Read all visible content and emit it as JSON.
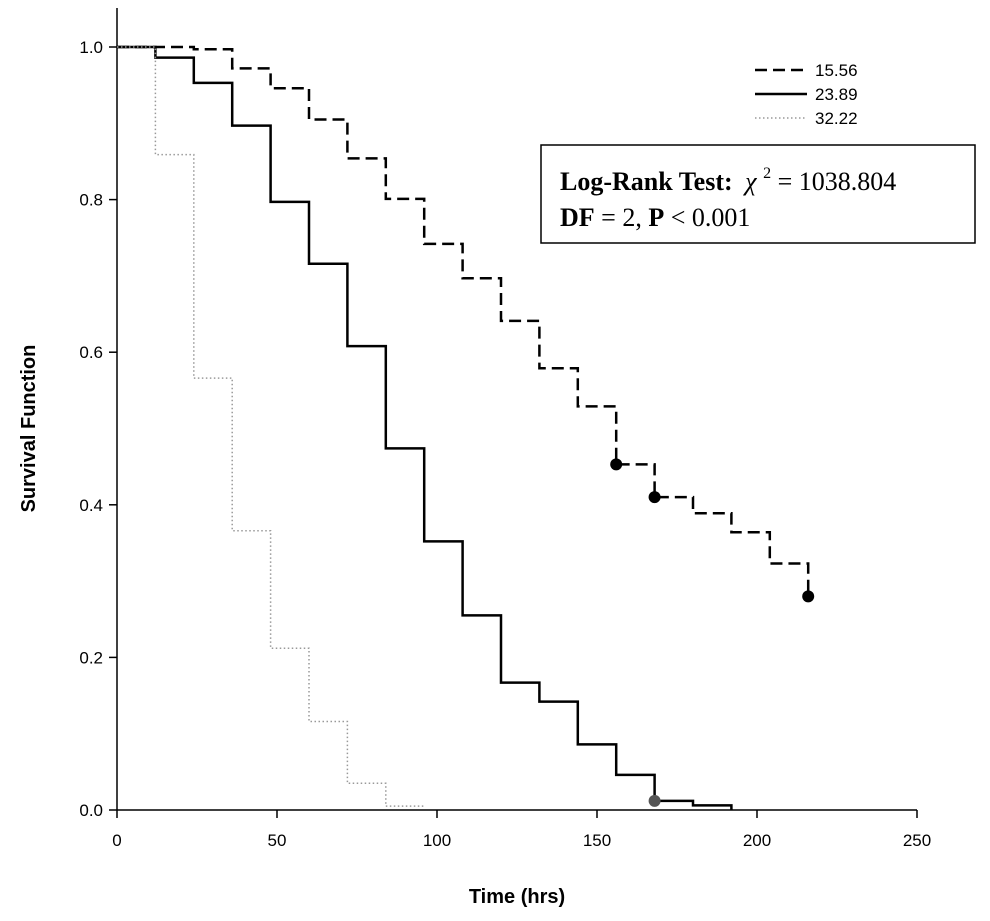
{
  "chart_data": {
    "type": "line",
    "subtype": "step (Kaplan-Meier survival)",
    "xlabel": "Time (hrs)",
    "ylabel": "Survival Function",
    "xlim": [
      0,
      250
    ],
    "ylim": [
      0,
      1.0
    ],
    "xticks": [
      "0",
      "50",
      "100",
      "150",
      "200",
      "250"
    ],
    "yticks": [
      "0.0",
      "0.2",
      "0.4",
      "0.6",
      "0.8",
      "1.0"
    ],
    "grid": false,
    "legend_position": "top-right",
    "series": [
      {
        "name": "15.56",
        "line_style": "dashed",
        "color": "#000000",
        "steps": [
          [
            0,
            1.0
          ],
          [
            12,
            1.0
          ],
          [
            24,
            0.997
          ],
          [
            36,
            0.972
          ],
          [
            48,
            0.946
          ],
          [
            60,
            0.905
          ],
          [
            72,
            0.854
          ],
          [
            84,
            0.801
          ],
          [
            96,
            0.742
          ],
          [
            108,
            0.697
          ],
          [
            120,
            0.641
          ],
          [
            132,
            0.579
          ],
          [
            144,
            0.529
          ],
          [
            156,
            0.453
          ],
          [
            168,
            0.41
          ],
          [
            180,
            0.389
          ],
          [
            192,
            0.364
          ],
          [
            204,
            0.323
          ],
          [
            216,
            0.28
          ]
        ],
        "censored": [
          [
            156,
            0.453
          ],
          [
            168,
            0.41
          ],
          [
            216,
            0.28
          ]
        ],
        "censored_color": "#000000"
      },
      {
        "name": "23.89",
        "line_style": "solid",
        "color": "#000000",
        "steps": [
          [
            0,
            1.0
          ],
          [
            12,
            0.986
          ],
          [
            24,
            0.953
          ],
          [
            36,
            0.897
          ],
          [
            48,
            0.797
          ],
          [
            60,
            0.716
          ],
          [
            72,
            0.608
          ],
          [
            84,
            0.474
          ],
          [
            96,
            0.352
          ],
          [
            108,
            0.255
          ],
          [
            120,
            0.167
          ],
          [
            132,
            0.142
          ],
          [
            144,
            0.086
          ],
          [
            156,
            0.046
          ],
          [
            168,
            0.012
          ],
          [
            180,
            0.006
          ],
          [
            192,
            0.0
          ]
        ],
        "censored": [
          [
            168,
            0.012
          ]
        ],
        "censored_color": "#555555"
      },
      {
        "name": "32.22",
        "line_style": "dotted",
        "color": "#999999",
        "steps": [
          [
            0,
            1.0
          ],
          [
            12,
            0.859
          ],
          [
            24,
            0.566
          ],
          [
            36,
            0.366
          ],
          [
            48,
            0.212
          ],
          [
            60,
            0.116
          ],
          [
            72,
            0.035
          ],
          [
            84,
            0.005
          ],
          [
            96,
            0.005
          ]
        ],
        "censored": []
      }
    ],
    "annotation": {
      "line1_bold": "Log-Rank Test:",
      "line1_chi": "χ",
      "line1_exp": "2",
      "line1_rest": "= 1038.804",
      "line2_df_bold": "DF",
      "line2_df_rest": "= 2, ",
      "line2_p_bold": "P",
      "line2_p_rest": " < 0.001"
    }
  }
}
